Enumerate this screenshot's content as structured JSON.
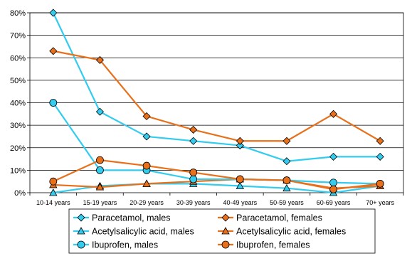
{
  "chart_data": {
    "type": "line",
    "title": "",
    "xlabel": "",
    "ylabel": "",
    "categories": [
      "10-14 years",
      "15-19 years",
      "20-29 years",
      "30-39 years",
      "40-49 years",
      "50-59 years",
      "60-69 years",
      "70+ years"
    ],
    "y_ticks": [
      "0%",
      "10%",
      "20%",
      "30%",
      "40%",
      "50%",
      "60%",
      "70%",
      "80%"
    ],
    "ylim": [
      0,
      80
    ],
    "grid": "horizontal",
    "legend_position": "bottom",
    "series": [
      {
        "name": "Paracetamol, males",
        "color": "#33CCEE",
        "marker": "diamond",
        "values": [
          80,
          36,
          25,
          23,
          21,
          14,
          16,
          16
        ]
      },
      {
        "name": "Paracetamol, females",
        "color": "#E8701A",
        "marker": "diamond",
        "values": [
          63,
          59,
          34,
          28,
          23,
          23,
          35,
          23
        ]
      },
      {
        "name": "Acetylsalicylic acid, males",
        "color": "#33CCEE",
        "marker": "triangle",
        "values": [
          0,
          3,
          4,
          4,
          3,
          2,
          0,
          3
        ]
      },
      {
        "name": "Acetylsalicylic acid, females",
        "color": "#E8701A",
        "marker": "triangle",
        "values": [
          3.5,
          2.5,
          4,
          5,
          6,
          5.5,
          2,
          3
        ]
      },
      {
        "name": "Ibuprofen, males",
        "color": "#33CCEE",
        "marker": "circle",
        "values": [
          40,
          10,
          10,
          6,
          6,
          5.5,
          4.5,
          4
        ]
      },
      {
        "name": "Ibuprofen, females",
        "color": "#E8701A",
        "marker": "circle",
        "values": [
          5,
          14.5,
          12,
          9,
          6,
          5.5,
          1.5,
          4
        ]
      }
    ]
  }
}
